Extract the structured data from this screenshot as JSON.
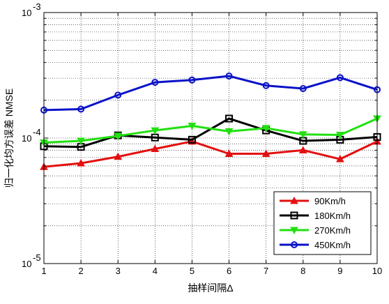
{
  "chart_data": {
    "type": "line",
    "title": "",
    "xlabel": "抽样间隔Δ",
    "ylabel": "归一化均方误差 NMSE",
    "x": [
      1,
      2,
      3,
      4,
      5,
      6,
      7,
      8,
      9,
      10
    ],
    "xlim": [
      1,
      10
    ],
    "xticks": [
      "1",
      "2",
      "3",
      "4",
      "5",
      "6",
      "7",
      "8",
      "9",
      "10"
    ],
    "yscale": "log",
    "ylim": [
      1e-05,
      0.001
    ],
    "yticks": [
      {
        "value": 0.001,
        "base": "10",
        "exp": "-3"
      },
      {
        "value": 0.0001,
        "base": "10",
        "exp": "-4"
      },
      {
        "value": 1e-05,
        "base": "10",
        "exp": "-5"
      }
    ],
    "grid": true,
    "legend_position": "bottom-right",
    "series": [
      {
        "name": "90Km/h",
        "color": "#e31010",
        "marker": "triangle-up",
        "values": [
          5.9e-05,
          6.3e-05,
          7.1e-05,
          8.2e-05,
          9.4e-05,
          7.5e-05,
          7.5e-05,
          8e-05,
          6.8e-05,
          9.4e-05
        ]
      },
      {
        "name": "180Km/h",
        "color": "#000000",
        "marker": "square",
        "values": [
          8.6e-05,
          8.5e-05,
          0.000105,
          0.000101,
          9.7e-05,
          0.000143,
          0.000115,
          9.5e-05,
          9.7e-05,
          0.000102
        ]
      },
      {
        "name": "270Km/h",
        "color": "#22e010",
        "marker": "triangle-down",
        "values": [
          9.2e-05,
          9.5e-05,
          0.000104,
          0.000115,
          0.000125,
          0.000113,
          0.00012,
          0.000107,
          0.000106,
          0.000143
        ]
      },
      {
        "name": "450Km/h",
        "color": "#0a12c8",
        "marker": "circle",
        "values": [
          0.000167,
          0.00017,
          0.00022,
          0.000278,
          0.00029,
          0.000312,
          0.000262,
          0.000248,
          0.000303,
          0.000243
        ]
      }
    ]
  }
}
